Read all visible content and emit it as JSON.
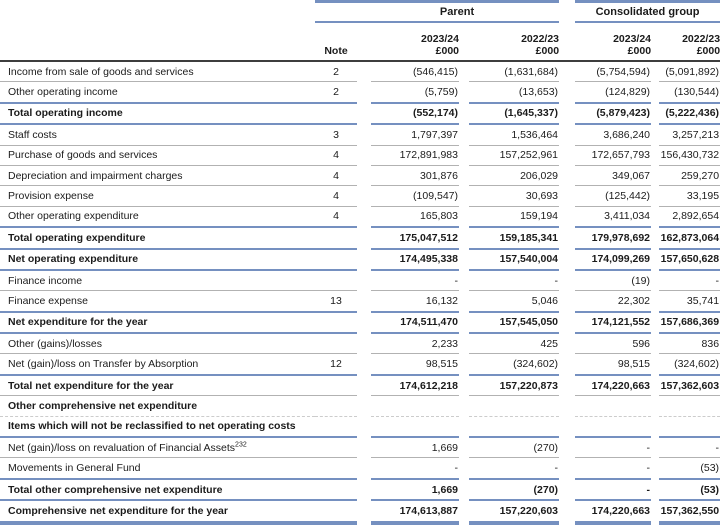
{
  "colors": {
    "accent_blue": "#7590c0",
    "grey_line": "#b2b2b2",
    "dark_line": "#3d3d3d",
    "text": "#1b1b1b"
  },
  "table": {
    "groups": [
      {
        "label": "Parent"
      },
      {
        "label": "Consolidated group"
      }
    ],
    "note_header": "Note",
    "columns": [
      {
        "year": "2023/24",
        "unit": "£000"
      },
      {
        "year": "2022/23",
        "unit": "£000"
      },
      {
        "year": "2023/24",
        "unit": "£000"
      },
      {
        "year": "2022/23",
        "unit": "£000"
      }
    ],
    "rows": [
      {
        "label": "Income from sale of goods and services",
        "note": "2",
        "values": [
          "(546,415)",
          "(1,631,684)",
          "(5,754,594)",
          "(5,091,892)"
        ],
        "bold": false,
        "sep": "grey"
      },
      {
        "label": "Other operating income",
        "note": "2",
        "values": [
          "(5,759)",
          "(13,653)",
          "(124,829)",
          "(130,544)"
        ],
        "bold": false,
        "sep": "blue"
      },
      {
        "label": "Total operating income",
        "note": "",
        "values": [
          "(552,174)",
          "(1,645,337)",
          "(5,879,423)",
          "(5,222,436)"
        ],
        "bold": true,
        "sep": "blue"
      },
      {
        "label": "Staff costs",
        "note": "3",
        "values": [
          "1,797,397",
          "1,536,464",
          "3,686,240",
          "3,257,213"
        ],
        "bold": false,
        "sep": "grey"
      },
      {
        "label": "Purchase of goods and services",
        "note": "4",
        "values": [
          "172,891,983",
          "157,252,961",
          "172,657,793",
          "156,430,732"
        ],
        "bold": false,
        "sep": "grey"
      },
      {
        "label": "Depreciation and impairment charges",
        "note": "4",
        "values": [
          "301,876",
          "206,029",
          "349,067",
          "259,270"
        ],
        "bold": false,
        "sep": "grey"
      },
      {
        "label": "Provision expense",
        "note": "4",
        "values": [
          "(109,547)",
          "30,693",
          "(125,442)",
          "33,195"
        ],
        "bold": false,
        "sep": "grey"
      },
      {
        "label": "Other operating expenditure",
        "note": "4",
        "values": [
          "165,803",
          "159,194",
          "3,411,034",
          "2,892,654"
        ],
        "bold": false,
        "sep": "blue"
      },
      {
        "label": "Total operating expenditure",
        "note": "",
        "values": [
          "175,047,512",
          "159,185,341",
          "179,978,692",
          "162,873,064"
        ],
        "bold": true,
        "sep": "blue"
      },
      {
        "label": "Net operating expenditure",
        "note": "",
        "values": [
          "174,495,338",
          "157,540,004",
          "174,099,269",
          "157,650,628"
        ],
        "bold": true,
        "sep": "blue"
      },
      {
        "label": "Finance income",
        "note": "",
        "values": [
          "-",
          "-",
          "(19)",
          "-"
        ],
        "bold": false,
        "sep": "grey"
      },
      {
        "label": "Finance expense",
        "note": "13",
        "values": [
          "16,132",
          "5,046",
          "22,302",
          "35,741"
        ],
        "bold": false,
        "sep": "blue"
      },
      {
        "label": "Net expenditure for the year",
        "note": "",
        "values": [
          "174,511,470",
          "157,545,050",
          "174,121,552",
          "157,686,369"
        ],
        "bold": true,
        "sep": "blue"
      },
      {
        "label": "Other (gains)/losses",
        "note": "",
        "values": [
          "2,233",
          "425",
          "596",
          "836"
        ],
        "bold": false,
        "sep": "grey"
      },
      {
        "label": "Net (gain)/loss on Transfer by Absorption",
        "note": "12",
        "values": [
          "98,515",
          "(324,602)",
          "98,515",
          "(324,602)"
        ],
        "bold": false,
        "sep": "blue"
      },
      {
        "label": "Total net expenditure for the year",
        "note": "",
        "values": [
          "174,612,218",
          "157,220,873",
          "174,220,663",
          "157,362,603"
        ],
        "bold": true,
        "sep": "grey"
      },
      {
        "label": "Other comprehensive net expenditure",
        "note": "",
        "values": [
          "",
          "",
          "",
          ""
        ],
        "bold": true,
        "sep": "faint"
      },
      {
        "label": "Items which will not be reclassified to net operating costs",
        "note": "",
        "values": [
          "",
          "",
          "",
          ""
        ],
        "bold": true,
        "sep": "blue"
      },
      {
        "label": "Net (gain)/loss on revaluation of Financial Assets",
        "sup": "232",
        "note": "",
        "values": [
          "1,669",
          "(270)",
          "-",
          "-"
        ],
        "bold": false,
        "sep": "grey"
      },
      {
        "label": "Movements in General Fund",
        "note": "",
        "values": [
          "-",
          "-",
          "-",
          "(53)"
        ],
        "bold": false,
        "sep": "blue"
      },
      {
        "label": "Total other comprehensive net expenditure",
        "note": "",
        "values": [
          "1,669",
          "(270)",
          "-",
          "(53)"
        ],
        "bold": true,
        "sep": "blue"
      },
      {
        "label": "Comprehensive net expenditure for the year",
        "note": "",
        "values": [
          "174,613,887",
          "157,220,603",
          "174,220,663",
          "157,362,550"
        ],
        "bold": true,
        "sep": "thick"
      }
    ]
  }
}
